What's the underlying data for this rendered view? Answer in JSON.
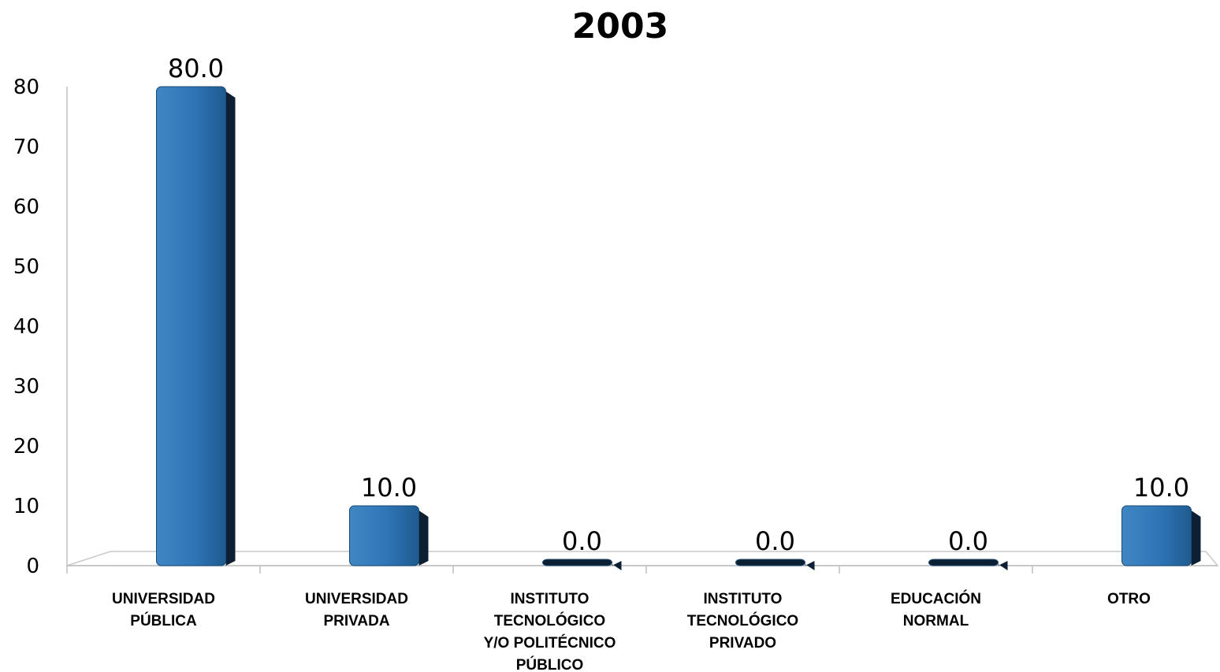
{
  "chart_data": {
    "type": "bar",
    "title": "2003",
    "categories": [
      [
        "UNIVERSIDAD",
        "PÚBLICA"
      ],
      [
        "UNIVERSIDAD",
        "PRIVADA"
      ],
      [
        "INSTITUTO",
        "TECNOLÓGICO",
        "Y/O POLITÉCNICO",
        "PÚBLICO"
      ],
      [
        "INSTITUTO",
        "TECNOLÓGICO",
        "PRIVADO"
      ],
      [
        "EDUCACIÓN",
        "NORMAL"
      ],
      [
        "OTRO"
      ]
    ],
    "values": [
      80.0,
      10.0,
      0.0,
      0.0,
      0.0,
      10.0
    ],
    "data_labels": [
      "80.0",
      "10.0",
      "0.0",
      "0.0",
      "0.0",
      "10.0"
    ],
    "ylim": [
      0,
      80
    ],
    "yticks": [
      "0",
      "10",
      "20",
      "30",
      "40",
      "50",
      "60",
      "70",
      "80"
    ],
    "bar_color": "#2E75B6",
    "grid": false,
    "legend": "none"
  }
}
